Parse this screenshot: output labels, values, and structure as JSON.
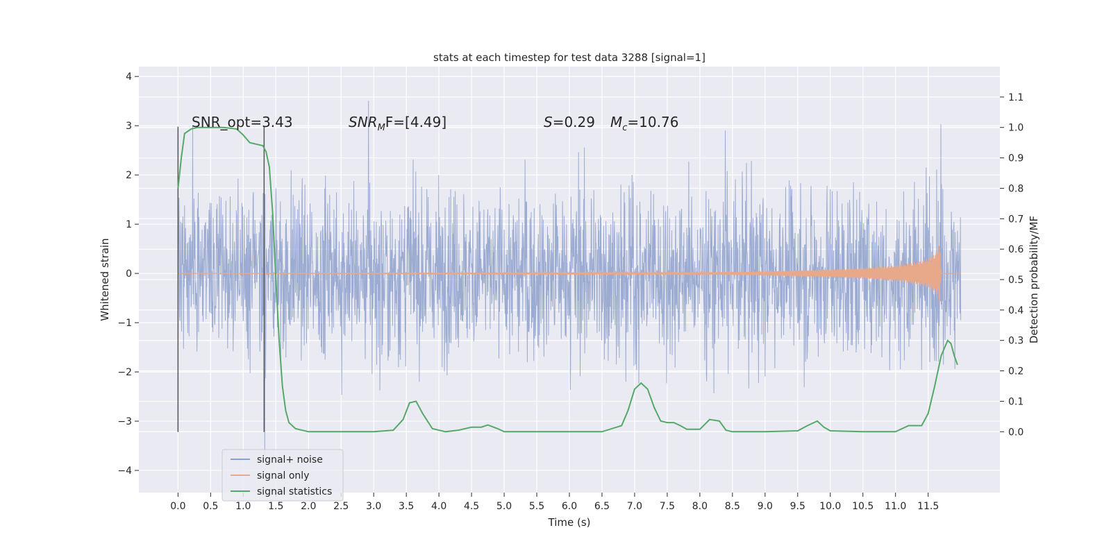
{
  "chart_data": {
    "type": "line",
    "title": "stats at each timestep for test data 3288 [signal=1]",
    "xlabel": "Time (s)",
    "ylabel": "Whitened strain",
    "y2label": "Detection probability/MF",
    "xlim": [
      -0.6,
      12.6
    ],
    "ylim": [
      -4.45,
      4.2
    ],
    "y2lim": [
      -0.2,
      1.2
    ],
    "x_ticks": [
      0.0,
      0.5,
      1.0,
      1.5,
      2.0,
      2.5,
      3.0,
      3.5,
      4.0,
      4.5,
      5.0,
      5.5,
      6.0,
      6.5,
      7.0,
      7.5,
      8.0,
      8.5,
      9.0,
      9.5,
      10.0,
      10.5,
      11.0,
      11.5
    ],
    "x_tick_labels": [
      "0.0",
      "0.5",
      "1.0",
      "1.5",
      "2.0",
      "2.5",
      "3.0",
      "3.5",
      "4.0",
      "4.5",
      "5.0",
      "5.5",
      "6.0",
      "6.5",
      "7.0",
      "7.5",
      "8.0",
      "8.5",
      "9.0",
      "9.5",
      "10.0",
      "10.5",
      "11.0",
      "11.5"
    ],
    "y_ticks": [
      -4,
      -3,
      -2,
      -1,
      0,
      1,
      2,
      3,
      4
    ],
    "y_tick_labels": [
      "−4",
      "−3",
      "−2",
      "−1",
      "0",
      "1",
      "2",
      "3",
      "4"
    ],
    "y2_ticks": [
      0.0,
      0.1,
      0.2,
      0.3,
      0.4,
      0.5,
      0.6,
      0.7,
      0.8,
      0.9,
      1.0,
      1.1
    ],
    "y2_tick_labels": [
      "0.0",
      "0.1",
      "0.2",
      "0.3",
      "0.4",
      "0.5",
      "0.6",
      "0.7",
      "0.8",
      "0.9",
      "1.0",
      "1.1"
    ],
    "grid": true,
    "legend_placement": "lower-left",
    "series": [
      {
        "name": "signal+ noise",
        "color": "#8da0cb",
        "description_values": "whitened strain, approx. symmetric noise between about -3.3 and 3.3 with spikes to ±4, from t=0.0 to t=12.0",
        "envelope": {
          "x": [
            0.0,
            12.0
          ],
          "typical_upper": 2.3,
          "typical_lower": -2.2,
          "peak_upper": 3.85,
          "peak_lower": -4.1
        }
      },
      {
        "name": "signal only",
        "color": "#e8a88a",
        "x": [
          0.0,
          8.0,
          9.0,
          10.0,
          10.5,
          11.0,
          11.3,
          11.5,
          11.6,
          11.65,
          11.68,
          11.7,
          12.0
        ],
        "amplitude": [
          0.0,
          0.02,
          0.04,
          0.08,
          0.11,
          0.16,
          0.22,
          0.3,
          0.4,
          0.5,
          0.6,
          0.0,
          0.0
        ]
      },
      {
        "name": "signal statistics",
        "color": "#55a868",
        "axis": "right",
        "x": [
          0.0,
          0.05,
          0.1,
          0.2,
          0.3,
          0.5,
          0.7,
          0.9,
          1.0,
          1.1,
          1.2,
          1.3,
          1.35,
          1.4,
          1.45,
          1.5,
          1.55,
          1.6,
          1.65,
          1.7,
          1.8,
          2.0,
          2.5,
          3.0,
          3.3,
          3.45,
          3.55,
          3.65,
          3.75,
          3.9,
          4.1,
          4.3,
          4.5,
          4.65,
          4.75,
          4.9,
          5.0,
          5.5,
          6.0,
          6.5,
          6.8,
          6.9,
          7.0,
          7.1,
          7.2,
          7.3,
          7.4,
          7.5,
          7.6,
          7.7,
          7.8,
          8.0,
          8.15,
          8.3,
          8.4,
          8.5,
          9.0,
          9.5,
          9.65,
          9.8,
          9.9,
          10.0,
          10.5,
          11.0,
          11.2,
          11.4,
          11.5,
          11.6,
          11.7,
          11.8,
          11.85,
          11.9,
          11.95
        ],
        "y": [
          0.8,
          0.9,
          0.98,
          0.995,
          1.0,
          1.0,
          1.0,
          0.995,
          0.975,
          0.95,
          0.945,
          0.94,
          0.92,
          0.87,
          0.72,
          0.5,
          0.3,
          0.15,
          0.07,
          0.03,
          0.01,
          0.0,
          0.0,
          0.0,
          0.005,
          0.04,
          0.095,
          0.1,
          0.06,
          0.01,
          0.0,
          0.005,
          0.015,
          0.015,
          0.022,
          0.01,
          0.0,
          0.0,
          0.0,
          0.0,
          0.02,
          0.07,
          0.14,
          0.16,
          0.14,
          0.08,
          0.035,
          0.03,
          0.03,
          0.02,
          0.008,
          0.008,
          0.04,
          0.035,
          0.005,
          0.0,
          0.0,
          0.003,
          0.02,
          0.035,
          0.015,
          0.003,
          0.0,
          0.0,
          0.02,
          0.02,
          0.06,
          0.15,
          0.25,
          0.3,
          0.29,
          0.25,
          0.22
        ]
      }
    ],
    "vertical_markers": [
      {
        "x": 0.0,
        "y_range": [
          -3.22,
          2.98
        ],
        "color": "#555555"
      },
      {
        "x": 1.32,
        "y_range": [
          -3.22,
          2.98
        ],
        "color": "#555555"
      }
    ],
    "annotations": [
      {
        "key": "snr_opt",
        "text": "SNR_opt=3.43"
      },
      {
        "key": "snr_mf",
        "base": "SNR",
        "sub": "M",
        "suffix": "F=[4.49]"
      },
      {
        "key": "s_val",
        "base": "S",
        "suffix": "=0.29"
      },
      {
        "key": "mc_val",
        "base": "M",
        "sub": "c",
        "suffix": "=10.76"
      }
    ]
  }
}
